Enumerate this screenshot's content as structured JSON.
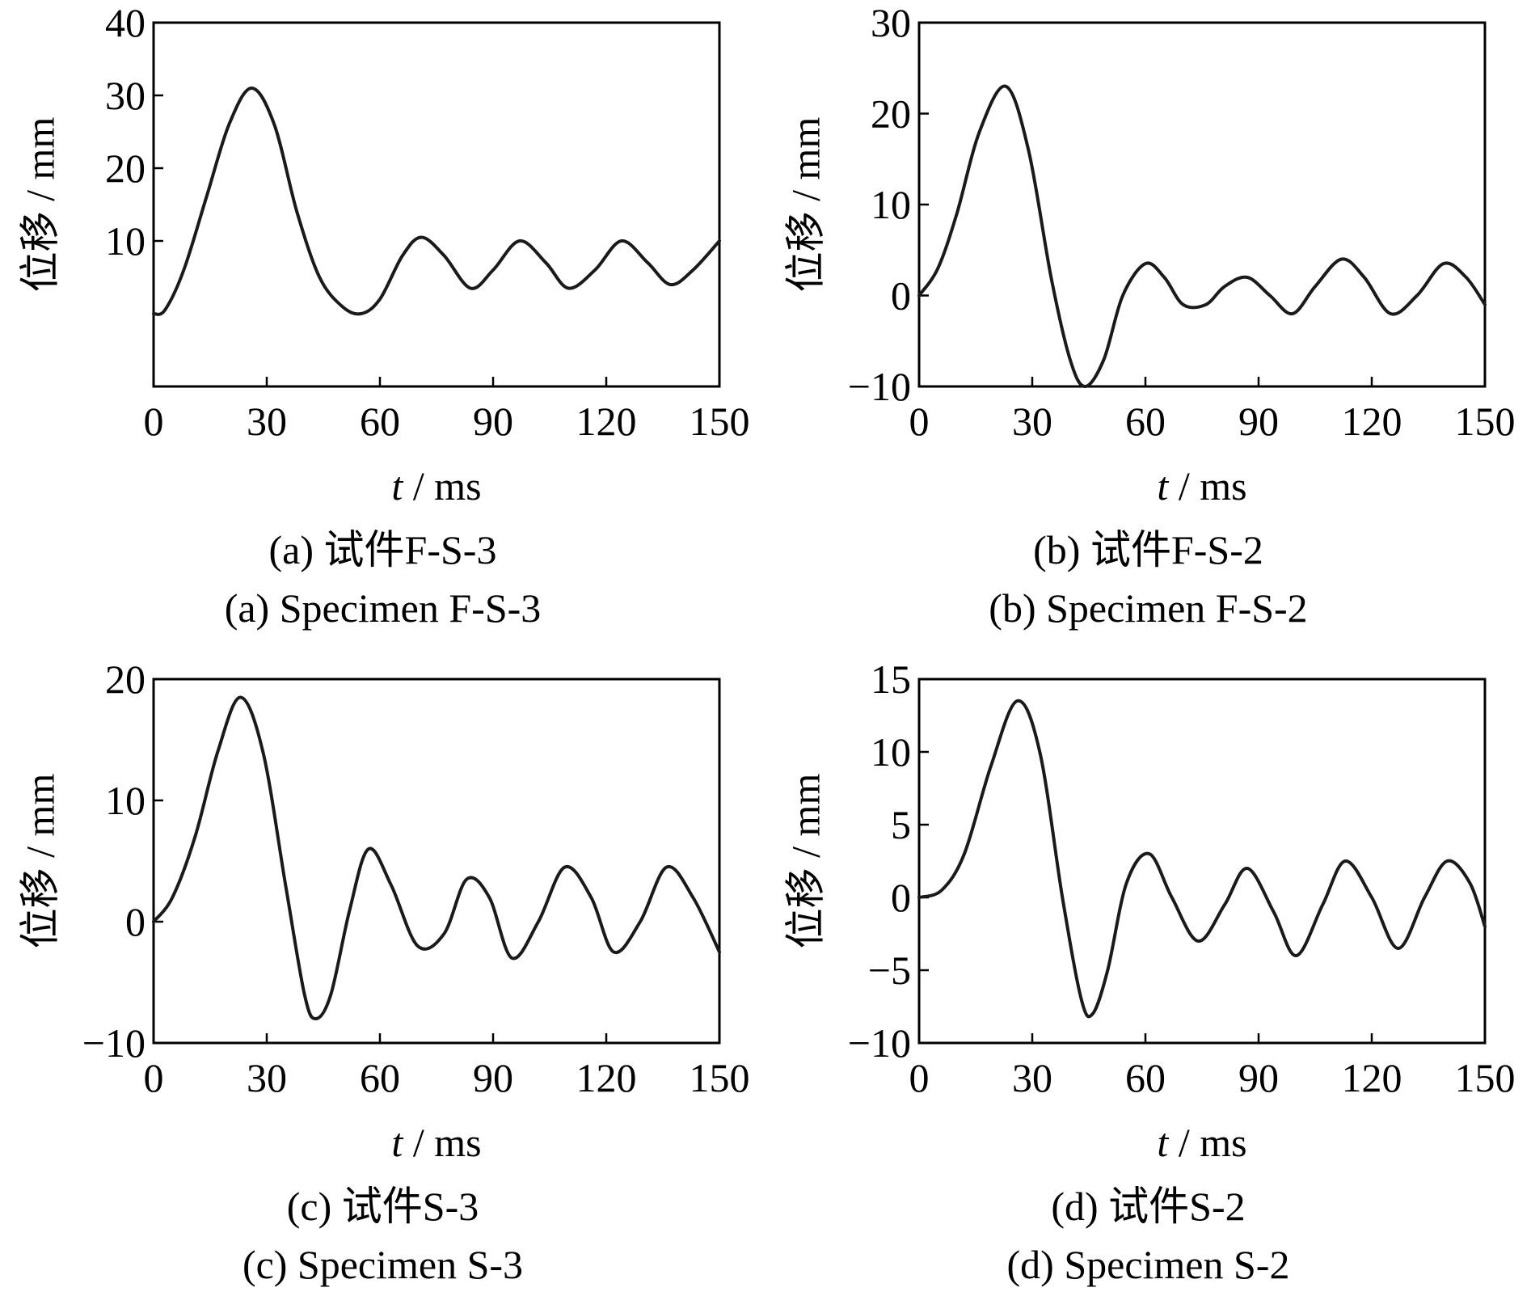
{
  "colors": {
    "line": "#1a1a1a",
    "frame": "#000000"
  },
  "chart_data": [
    {
      "type": "line",
      "title": "",
      "xlabel": "t / ms",
      "xlabel_var": "t",
      "xlabel_unit": " / ms",
      "ylabel": "位移 / mm",
      "xlim": [
        0,
        150
      ],
      "ylim": [
        -10,
        40
      ],
      "xticks": [
        0,
        30,
        60,
        90,
        120,
        150
      ],
      "yticks": [
        10,
        20,
        30,
        40
      ],
      "caption_cn": "(a)  试件F-S-3",
      "caption_en": "(a)  Specimen F-S-3",
      "series": [
        {
          "name": "F-S-3",
          "x": [
            0,
            3,
            8,
            14,
            20,
            26,
            32,
            38,
            44,
            50,
            55,
            60,
            66,
            71,
            77,
            84,
            90,
            97,
            104,
            110,
            117,
            124,
            131,
            137,
            143,
            150
          ],
          "y": [
            0,
            0.5,
            6,
            16,
            26,
            31,
            26,
            14,
            5,
            1,
            0,
            2,
            8,
            10.5,
            8,
            3.5,
            6,
            10,
            7,
            3.5,
            6,
            10,
            7,
            4,
            6,
            10
          ]
        }
      ]
    },
    {
      "type": "line",
      "title": "",
      "xlabel": "t / ms",
      "xlabel_var": "t",
      "xlabel_unit": " / ms",
      "ylabel": "位移 / mm",
      "xlim": [
        0,
        150
      ],
      "ylim": [
        -10,
        30
      ],
      "xticks": [
        0,
        30,
        60,
        90,
        120,
        150
      ],
      "yticks": [
        -10,
        0,
        10,
        20,
        30
      ],
      "caption_cn": "(b)  试件F-S-2",
      "caption_en": "(b)  Specimen F-S-2",
      "series": [
        {
          "name": "F-S-2",
          "x": [
            0,
            5,
            10,
            16,
            23,
            29,
            35,
            40,
            44,
            49,
            54,
            60,
            65,
            70,
            76,
            81,
            87,
            93,
            99,
            105,
            112,
            118,
            125,
            132,
            139,
            145,
            150
          ],
          "y": [
            0,
            3,
            9,
            18,
            23,
            16,
            2,
            -7,
            -10,
            -7,
            0,
            3.5,
            2,
            -1,
            -1,
            1,
            2,
            0,
            -2,
            1,
            4,
            2,
            -2,
            0,
            3.5,
            2,
            -1
          ]
        }
      ]
    },
    {
      "type": "line",
      "title": "",
      "xlabel": "t / ms",
      "xlabel_var": "t",
      "xlabel_unit": " / ms",
      "ylabel": "位移 / mm",
      "xlim": [
        0,
        150
      ],
      "ylim": [
        -10,
        20
      ],
      "xticks": [
        0,
        30,
        60,
        90,
        120,
        150
      ],
      "yticks": [
        -10,
        0,
        10,
        20
      ],
      "caption_cn": "(c)  试件S-3",
      "caption_en": "(c)  Specimen S-3",
      "series": [
        {
          "name": "S-3",
          "x": [
            0,
            5,
            11,
            17,
            23,
            29,
            35,
            40,
            43,
            47,
            52,
            57,
            63,
            70,
            77,
            83,
            89,
            95,
            102,
            109,
            116,
            122,
            129,
            136,
            143,
            150
          ],
          "y": [
            0,
            2,
            7,
            14,
            18.5,
            14,
            3,
            -6,
            -8,
            -6,
            1,
            6,
            3,
            -2,
            -1,
            3.5,
            2,
            -3,
            0,
            4.5,
            2,
            -2.5,
            0,
            4.5,
            2,
            -2.5
          ]
        }
      ]
    },
    {
      "type": "line",
      "title": "",
      "xlabel": "t / ms",
      "xlabel_var": "t",
      "xlabel_unit": " / ms",
      "ylabel": "位移 / mm",
      "xlim": [
        0,
        150
      ],
      "ylim": [
        -10,
        15
      ],
      "xticks": [
        0,
        30,
        60,
        90,
        120,
        150
      ],
      "yticks": [
        -10,
        -5,
        0,
        5,
        10,
        15
      ],
      "caption_cn": "(d)  试件S-2",
      "caption_en": "(d)  Specimen S-2",
      "series": [
        {
          "name": "S-2",
          "x": [
            0,
            6,
            12,
            19,
            26,
            32,
            38,
            43,
            46,
            50,
            55,
            61,
            67,
            74,
            81,
            87,
            94,
            100,
            107,
            113,
            120,
            127,
            134,
            140,
            146,
            150
          ],
          "y": [
            0,
            0.5,
            3,
            9,
            13.5,
            10,
            0,
            -7,
            -8,
            -5,
            1,
            3,
            0,
            -3,
            -0.5,
            2,
            -1,
            -4,
            -0.5,
            2.5,
            0,
            -3.5,
            0,
            2.5,
            1,
            -2
          ]
        }
      ]
    }
  ]
}
